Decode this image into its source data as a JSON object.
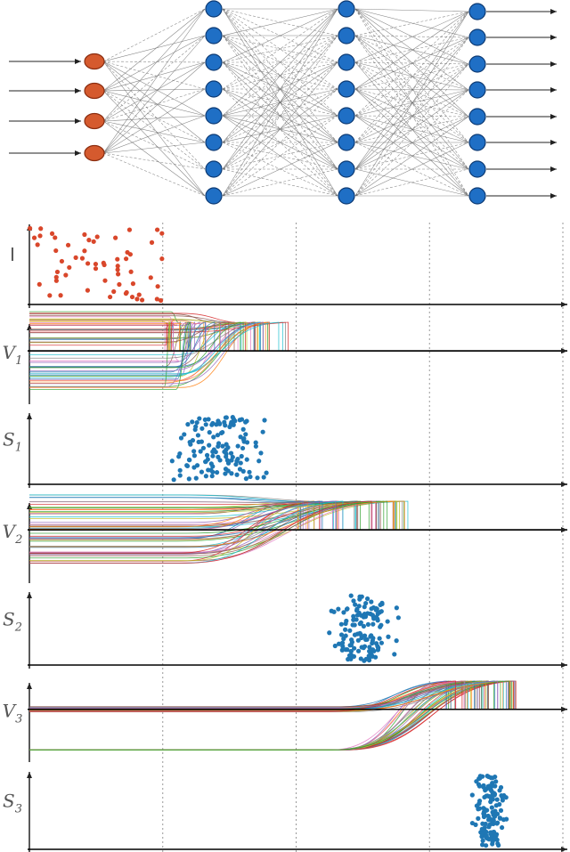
{
  "colors": {
    "input_neuron": "#d55a2e",
    "input_neuron_stroke": "#8a2d10",
    "hidden_neuron": "#1f6fc5",
    "hidden_neuron_stroke": "#0d3a73",
    "input_spike": "#d9472b",
    "hidden_spike": "#1f77b4",
    "axis": "#000000",
    "divider": "#999999",
    "edge": "#666666"
  },
  "network": {
    "layers": [
      {
        "name": "input",
        "neurons": 4,
        "icon": "input-neuron-icon"
      },
      {
        "name": "hidden-1",
        "neurons": 8,
        "icon": "hidden-neuron-icon"
      },
      {
        "name": "hidden-2",
        "neurons": 8,
        "icon": "hidden-neuron-icon"
      },
      {
        "name": "output",
        "neurons": 8,
        "icon": "output-neuron-icon"
      }
    ],
    "input_arrows": 4,
    "output_arrows": 8
  },
  "panels": [
    {
      "id": "I",
      "label": "I",
      "sub": "",
      "kind": "spikes",
      "window": [
        0,
        1.0
      ],
      "color_key": "input_spike"
    },
    {
      "id": "V1",
      "label": "V",
      "sub": "1",
      "kind": "voltage",
      "onset": 1.0,
      "cross": [
        1.0,
        2.0
      ]
    },
    {
      "id": "S1",
      "label": "S",
      "sub": "1",
      "kind": "spikes",
      "window": [
        1.0,
        1.85
      ],
      "color_key": "hidden_spike"
    },
    {
      "id": "V2",
      "label": "V",
      "sub": "2",
      "kind": "voltage",
      "onset": 1.1,
      "cross": [
        2.0,
        2.85
      ]
    },
    {
      "id": "S2",
      "label": "S",
      "sub": "2",
      "kind": "spikes",
      "window": [
        2.2,
        2.8
      ],
      "color_key": "hidden_spike"
    },
    {
      "id": "V3",
      "label": "V",
      "sub": "3",
      "kind": "voltage",
      "onset": 2.25,
      "cross": [
        3.1,
        3.65
      ]
    },
    {
      "id": "S3",
      "label": "S",
      "sub": "3",
      "kind": "spikes",
      "window": [
        3.3,
        3.6
      ],
      "color_key": "hidden_spike"
    }
  ],
  "time_axis": {
    "range": [
      0,
      4
    ],
    "dividers": [
      1,
      2,
      3,
      4
    ]
  }
}
